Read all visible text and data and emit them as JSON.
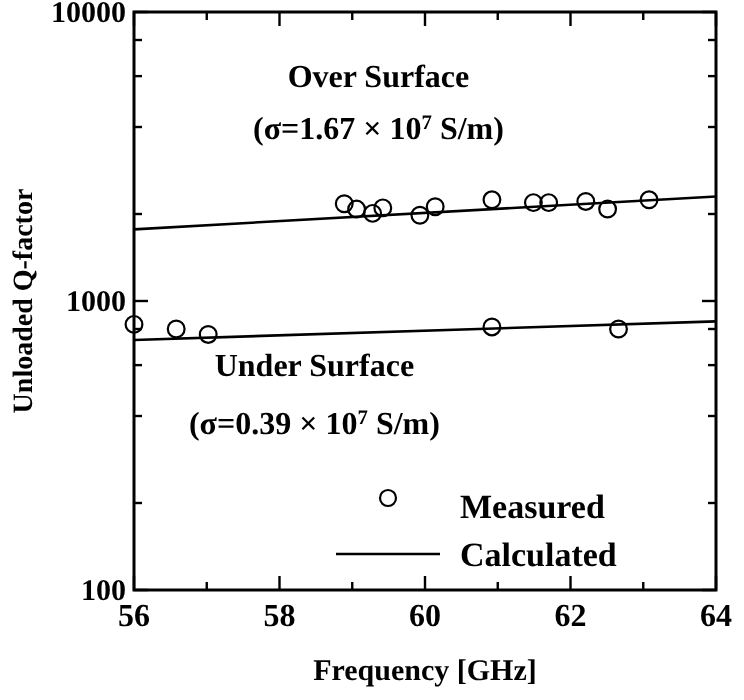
{
  "chart_data": {
    "type": "scatter",
    "xlabel": "Frequency [GHz]",
    "ylabel": "Unloaded Q-factor",
    "log": "y",
    "xlim": [
      56,
      64
    ],
    "ylim": [
      100,
      10000
    ],
    "xticks": [
      56,
      {
        "value": 57,
        "label": null
      },
      58,
      {
        "value": 59,
        "label": null
      },
      60,
      {
        "value": 61,
        "label": null
      },
      62,
      {
        "value": 63,
        "label": null
      },
      64
    ],
    "yticks": [
      100,
      {
        "value": 200,
        "label": null
      },
      {
        "value": 400,
        "label": null
      },
      {
        "value": 600,
        "label": null
      },
      {
        "value": 800,
        "label": null
      },
      1000,
      {
        "value": 2000,
        "label": null
      },
      {
        "value": 4000,
        "label": null
      },
      {
        "value": 6000,
        "label": null
      },
      {
        "value": 8000,
        "label": null
      },
      10000
    ],
    "grid": false,
    "legend": "bottom right",
    "marker": "circle",
    "series": [
      {
        "name": "Measured",
        "color": "#000000",
        "x": [
          58.89,
          59.06,
          59.28,
          59.42,
          59.93,
          60.14,
          60.92,
          61.49,
          61.7,
          62.21,
          62.51,
          63.08
        ],
        "values": [
          2170,
          2080,
          2010,
          2100,
          1980,
          2120,
          2240,
          2190,
          2190,
          2210,
          2080,
          2240
        ]
      },
      {
        "color": "#000000",
        "x": [
          56.0,
          56.58,
          57.02,
          60.92,
          62.66
        ],
        "values": [
          830,
          800,
          766,
          813,
          800
        ]
      },
      {
        "name": "Calculated",
        "type": "line",
        "color": "#000000",
        "line_style": "solid",
        "marker": "none",
        "x": [
          56,
          64
        ],
        "values": [
          1770,
          2300
        ]
      },
      {
        "type": "line",
        "color": "#000000",
        "line_style": "solid",
        "marker": "none",
        "x": [
          56,
          64
        ],
        "values": [
          733,
          850
        ]
      }
    ],
    "annotations": [
      "Over Surface",
      "(σ=1.67 × 10$^{7}$ S/m)",
      "Under Surface",
      "(σ=0.39 × 10$^{7}$ S/m)"
    ]
  }
}
